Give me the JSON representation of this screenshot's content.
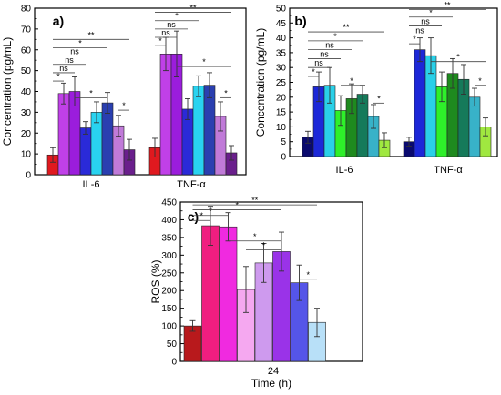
{
  "chart_data": [
    {
      "type": "bar",
      "panel_label": "a)",
      "ylabel": "Concentration (pg/mL)",
      "xlabel": "",
      "ylim": [
        0,
        80
      ],
      "yticks": [
        0,
        10,
        20,
        30,
        40,
        50,
        60,
        70,
        80
      ],
      "categories": [
        "IL-6",
        "TNF-α"
      ],
      "bar_colors": [
        "#e0191f",
        "#c040e8",
        "#9b1ddc",
        "#2a2ad8",
        "#29d3f0",
        "#2a3fb0",
        "#c07ad8",
        "#6a1f8c"
      ],
      "series": [
        {
          "values": [
            9.5,
            13
          ]
        },
        {
          "values": [
            39,
            58
          ]
        },
        {
          "values": [
            40,
            58
          ]
        },
        {
          "values": [
            22.5,
            31.5
          ]
        },
        {
          "values": [
            30,
            42.5
          ]
        },
        {
          "values": [
            34.5,
            43
          ]
        },
        {
          "values": [
            23.5,
            28
          ]
        },
        {
          "values": [
            12,
            10.5
          ]
        }
      ],
      "errors": [
        [
          3.5,
          4.5
        ],
        [
          5,
          8
        ],
        [
          7,
          11
        ],
        [
          3,
          5
        ],
        [
          5,
          5
        ],
        [
          5,
          6
        ],
        [
          5,
          7
        ],
        [
          5,
          3.5
        ]
      ],
      "significance": [
        {
          "category": 0,
          "from": 0,
          "to": 1,
          "label": "*",
          "y": 45
        },
        {
          "category": 0,
          "from": 0,
          "to": 2,
          "label": "ns",
          "y": 49
        },
        {
          "category": 0,
          "from": 0,
          "to": 3,
          "label": "ns",
          "y": 53
        },
        {
          "category": 0,
          "from": 0,
          "to": 4,
          "label": "ns",
          "y": 57
        },
        {
          "category": 0,
          "from": 0,
          "to": 5,
          "label": "*",
          "y": 61
        },
        {
          "category": 0,
          "from": 0,
          "to": 7,
          "label": "**",
          "y": 65
        },
        {
          "category": 0,
          "from": 2,
          "to": 5,
          "label": "*",
          "y": 37
        },
        {
          "category": 0,
          "from": 6,
          "to": 7,
          "label": "*",
          "y": 31
        },
        {
          "category": 1,
          "from": 0,
          "to": 1,
          "label": "*",
          "y": 62
        },
        {
          "category": 1,
          "from": 0,
          "to": 2,
          "label": "ns",
          "y": 66
        },
        {
          "category": 1,
          "from": 0,
          "to": 3,
          "label": "ns",
          "y": 70
        },
        {
          "category": 1,
          "from": 0,
          "to": 4,
          "label": "*",
          "y": 74
        },
        {
          "category": 1,
          "from": 0,
          "to": 7,
          "label": "**",
          "y": 78
        },
        {
          "category": 1,
          "from": 2,
          "to": 7,
          "label": "*",
          "y": 52
        },
        {
          "category": 1,
          "from": 6,
          "to": 7,
          "label": "*",
          "y": 37
        }
      ]
    },
    {
      "type": "bar",
      "panel_label": "b)",
      "ylabel": "Concentration (pg/mL)",
      "xlabel": "",
      "ylim": [
        0,
        50
      ],
      "yticks": [
        0,
        5,
        10,
        15,
        20,
        25,
        30,
        35,
        40,
        45,
        50
      ],
      "categories": [
        "IL-6",
        "TNF-α"
      ],
      "bar_colors": [
        "#0a0a6e",
        "#1c28d8",
        "#2ad0e8",
        "#2ef02a",
        "#1e8a1e",
        "#157a5a",
        "#38b2c8",
        "#a0e840"
      ],
      "series": [
        {
          "values": [
            6.5,
            5
          ]
        },
        {
          "values": [
            23.5,
            36
          ]
        },
        {
          "values": [
            24,
            34
          ]
        },
        {
          "values": [
            15.5,
            23.5
          ]
        },
        {
          "values": [
            19.5,
            28
          ]
        },
        {
          "values": [
            21,
            26
          ]
        },
        {
          "values": [
            13.5,
            20
          ]
        },
        {
          "values": [
            5.5,
            10
          ]
        }
      ],
      "errors": [
        [
          2,
          1.5
        ],
        [
          5,
          4
        ],
        [
          6,
          6
        ],
        [
          5,
          5
        ],
        [
          5,
          5
        ],
        [
          3,
          5
        ],
        [
          4,
          3
        ],
        [
          2.5,
          3
        ]
      ],
      "significance": [
        {
          "category": 0,
          "from": 0,
          "to": 1,
          "label": "*",
          "y": 27
        },
        {
          "category": 0,
          "from": 0,
          "to": 2,
          "label": "ns",
          "y": 30
        },
        {
          "category": 0,
          "from": 0,
          "to": 3,
          "label": "ns",
          "y": 33
        },
        {
          "category": 0,
          "from": 0,
          "to": 4,
          "label": "ns",
          "y": 36
        },
        {
          "category": 0,
          "from": 0,
          "to": 5,
          "label": "*",
          "y": 39
        },
        {
          "category": 0,
          "from": 0,
          "to": 7,
          "label": "**",
          "y": 42
        },
        {
          "category": 0,
          "from": 3,
          "to": 5,
          "label": "*",
          "y": 24
        },
        {
          "category": 0,
          "from": 6,
          "to": 7,
          "label": "*",
          "y": 18
        },
        {
          "category": 1,
          "from": 0,
          "to": 1,
          "label": "*",
          "y": 38
        },
        {
          "category": 1,
          "from": 0,
          "to": 2,
          "label": "ns",
          "y": 41
        },
        {
          "category": 1,
          "from": 0,
          "to": 3,
          "label": "ns",
          "y": 44
        },
        {
          "category": 1,
          "from": 0,
          "to": 4,
          "label": "*",
          "y": 47
        },
        {
          "category": 1,
          "from": 0,
          "to": 7,
          "label": "**",
          "y": 49.5
        },
        {
          "category": 1,
          "from": 2,
          "to": 7,
          "label": "*",
          "y": 32
        },
        {
          "category": 1,
          "from": 6,
          "to": 7,
          "label": "*",
          "y": 24
        }
      ]
    },
    {
      "type": "bar",
      "panel_label": "c)",
      "ylabel": "ROS (%)",
      "xlabel": "Time (h)",
      "ylim": [
        0,
        450
      ],
      "yticks": [
        0,
        50,
        100,
        150,
        200,
        250,
        300,
        350,
        400,
        450
      ],
      "categories": [
        "24"
      ],
      "bar_colors": [
        "#b8191c",
        "#f01e80",
        "#f02ae0",
        "#f5a8f0",
        "#ce9aee",
        "#9a33e8",
        "#5555e8",
        "#b8e0f8"
      ],
      "series": [
        {
          "values": [
            100
          ]
        },
        {
          "values": [
            383
          ]
        },
        {
          "values": [
            380
          ]
        },
        {
          "values": [
            203
          ]
        },
        {
          "values": [
            278
          ]
        },
        {
          "values": [
            310
          ]
        },
        {
          "values": [
            222
          ]
        },
        {
          "values": [
            110
          ]
        }
      ],
      "errors": [
        [
          15
        ],
        [
          55
        ],
        [
          40
        ],
        [
          65
        ],
        [
          55
        ],
        [
          55
        ],
        [
          50
        ],
        [
          40
        ]
      ],
      "significance": [
        {
          "category": 0,
          "from": 0,
          "to": 1,
          "label": "*",
          "y": 398
        },
        {
          "category": 0,
          "from": 0,
          "to": 2,
          "label": "*",
          "y": 412
        },
        {
          "category": 0,
          "from": 0,
          "to": 5,
          "label": "*",
          "y": 428
        },
        {
          "category": 0,
          "from": 0,
          "to": 7,
          "label": "**",
          "y": 442
        },
        {
          "category": 0,
          "from": 2,
          "to": 5,
          "label": "*",
          "y": 340
        },
        {
          "category": 0,
          "from": 3,
          "to": 5,
          "label": "*",
          "y": 315
        },
        {
          "category": 0,
          "from": 6,
          "to": 7,
          "label": "*",
          "y": 232
        }
      ]
    }
  ]
}
